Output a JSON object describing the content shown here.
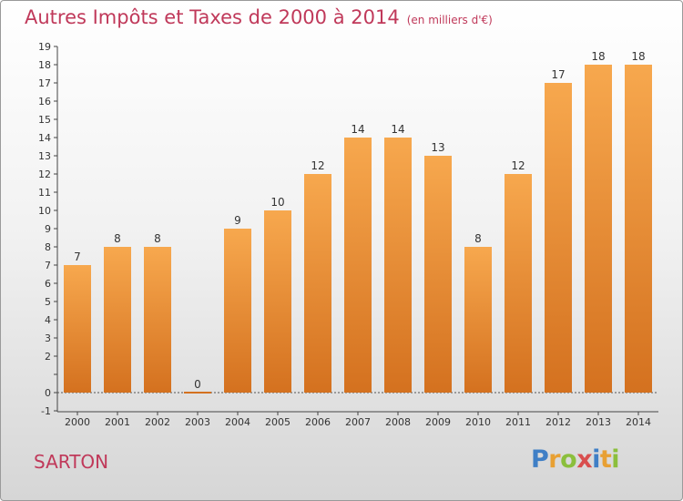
{
  "header": {
    "title": "Autres Impôts et Taxes de 2000 à 2014",
    "unit": "(en milliers d'€)"
  },
  "footer": {
    "location": "SARTON",
    "brand_letters": [
      "P",
      "r",
      "o",
      "x",
      "i",
      "t",
      "i"
    ],
    "brand_colors": [
      "#3f7fc6",
      "#e8a033",
      "#8bbf3c",
      "#d94f4f",
      "#3f7fc6",
      "#e8a033",
      "#8bbf3c"
    ]
  },
  "colors": {
    "bar_top": "#f7a84e",
    "bar_bottom": "#d4711f",
    "title": "#c0395a"
  },
  "chart_data": {
    "type": "bar",
    "categories": [
      "2000",
      "2001",
      "2002",
      "2003",
      "2004",
      "2005",
      "2006",
      "2007",
      "2008",
      "2009",
      "2010",
      "2011",
      "2012",
      "2013",
      "2014"
    ],
    "values": [
      7,
      8,
      8,
      0,
      9,
      10,
      12,
      14,
      14,
      13,
      8,
      12,
      17,
      18,
      18
    ],
    "ylim": [
      -1,
      19
    ],
    "yticks": [
      "-1",
      "0",
      "",
      "2",
      "3",
      "4",
      "5",
      "6",
      "7",
      "8",
      "9",
      "10",
      "11",
      "12",
      "13",
      "14",
      "15",
      "16",
      "17",
      "18",
      "19"
    ],
    "grid": false
  }
}
